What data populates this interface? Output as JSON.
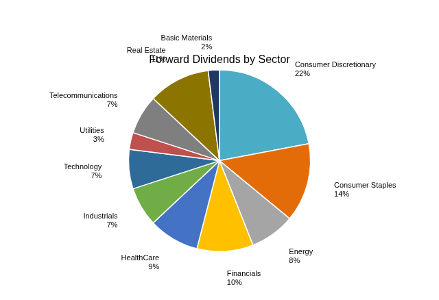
{
  "chart_data": {
    "type": "pie",
    "title": "Forward Dividends by Sector",
    "categories": [
      "Consumer Discretionary",
      "Consumer Staples",
      "Energy",
      "Financials",
      "HealthCare",
      "Industrials",
      "Technology",
      "Utilities",
      "Telecommunications",
      "Real Estate",
      "Basic Materials"
    ],
    "values": [
      22,
      14,
      8,
      10,
      9,
      7,
      7,
      3,
      7,
      11,
      2
    ],
    "value_labels": [
      "22%",
      "14%",
      "8%",
      "10%",
      "9%",
      "7%",
      "7%",
      "3%",
      "7%",
      "11%",
      "2%"
    ],
    "colors": [
      "#4BACC6",
      "#E36C09",
      "#A5A5A5",
      "#FFC000",
      "#4472C4",
      "#70AD47",
      "#2E6B99",
      "#C0504D",
      "#7F7F7F",
      "#8B7500",
      "#1F3864"
    ],
    "data_labels": true
  }
}
